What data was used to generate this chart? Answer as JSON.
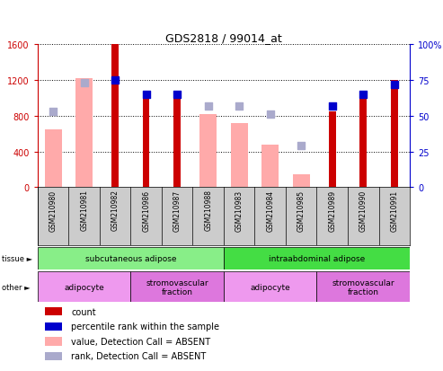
{
  "title": "GDS2818 / 99014_at",
  "samples": [
    "GSM210980",
    "GSM210981",
    "GSM210982",
    "GSM210986",
    "GSM210987",
    "GSM210988",
    "GSM210983",
    "GSM210984",
    "GSM210985",
    "GSM210989",
    "GSM210990",
    "GSM210991"
  ],
  "count": [
    null,
    null,
    1600,
    1000,
    1000,
    null,
    null,
    null,
    null,
    850,
    1000,
    1200
  ],
  "percentile_rank": [
    null,
    null,
    75,
    65,
    65,
    null,
    null,
    null,
    null,
    57,
    65,
    72
  ],
  "value_absent": [
    650,
    1220,
    null,
    null,
    null,
    820,
    720,
    480,
    150,
    null,
    null,
    null
  ],
  "rank_absent": [
    53,
    73,
    null,
    null,
    null,
    57,
    57,
    51,
    29,
    null,
    null,
    null
  ],
  "count_color": "#cc0000",
  "percentile_color": "#0000cc",
  "value_absent_color": "#ffaaaa",
  "rank_absent_color": "#aaaacc",
  "ylim_left": [
    0,
    1600
  ],
  "ylim_right": [
    0,
    100
  ],
  "yticks_left": [
    0,
    400,
    800,
    1200,
    1600
  ],
  "yticks_right": [
    0,
    25,
    50,
    75,
    100
  ],
  "ytick_labels_left": [
    "0",
    "400",
    "800",
    "1200",
    "1600"
  ],
  "ytick_labels_right": [
    "0",
    "25",
    "50",
    "75",
    "100%"
  ],
  "tissue_groups": [
    {
      "label": "subcutaneous adipose",
      "start": 0,
      "end": 6,
      "color": "#88ee88"
    },
    {
      "label": "intraabdominal adipose",
      "start": 6,
      "end": 12,
      "color": "#44dd44"
    }
  ],
  "other_groups": [
    {
      "label": "adipocyte",
      "start": 0,
      "end": 3,
      "color": "#ee99ee"
    },
    {
      "label": "stromovascular\nfraction",
      "start": 3,
      "end": 6,
      "color": "#dd77dd"
    },
    {
      "label": "adipocyte",
      "start": 6,
      "end": 9,
      "color": "#ee99ee"
    },
    {
      "label": "stromovascular\nfraction",
      "start": 9,
      "end": 12,
      "color": "#dd77dd"
    }
  ],
  "legend_items": [
    {
      "color": "#cc0000",
      "label": "count"
    },
    {
      "color": "#0000cc",
      "label": "percentile rank within the sample"
    },
    {
      "color": "#ffaaaa",
      "label": "value, Detection Call = ABSENT"
    },
    {
      "color": "#aaaacc",
      "label": "rank, Detection Call = ABSENT"
    }
  ],
  "fig_width": 4.93,
  "fig_height": 4.14,
  "dpi": 100
}
